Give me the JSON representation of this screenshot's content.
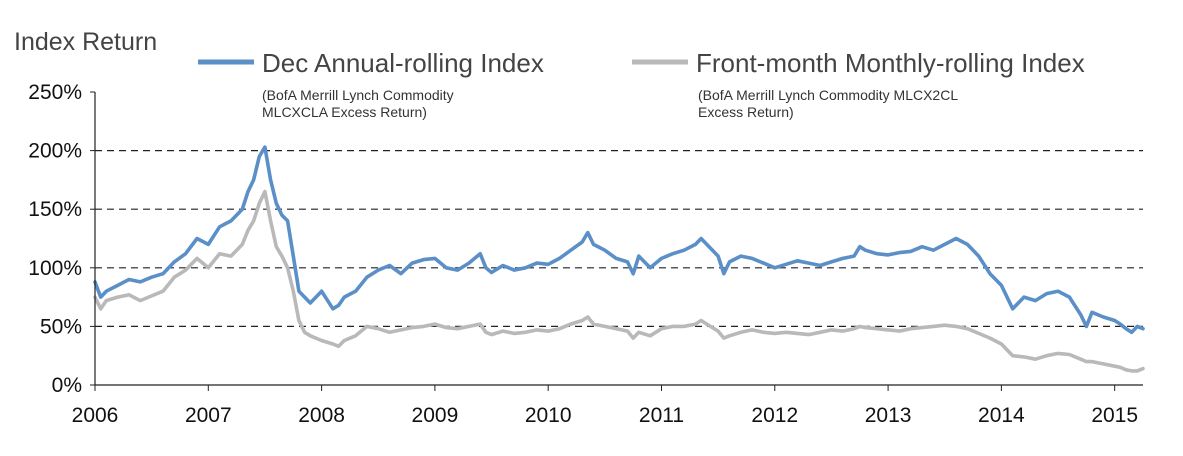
{
  "chart_data": {
    "type": "line",
    "ylabel": "Index Return",
    "ylim": [
      0,
      250
    ],
    "xlim": [
      2006,
      2015.25
    ],
    "y_ticks": [
      {
        "value": 0,
        "label": "0%"
      },
      {
        "value": 50,
        "label": "50%"
      },
      {
        "value": 100,
        "label": "100%"
      },
      {
        "value": 150,
        "label": "150%"
      },
      {
        "value": 200,
        "label": "200%"
      },
      {
        "value": 250,
        "label": "250%"
      }
    ],
    "x_ticks": [
      {
        "value": 2006,
        "label": "2006"
      },
      {
        "value": 2007,
        "label": "2007"
      },
      {
        "value": 2008,
        "label": "2008"
      },
      {
        "value": 2009,
        "label": "2009"
      },
      {
        "value": 2010,
        "label": "2010"
      },
      {
        "value": 2011,
        "label": "2011"
      },
      {
        "value": 2012,
        "label": "2012"
      },
      {
        "value": 2013,
        "label": "2013"
      },
      {
        "value": 2014,
        "label": "2014"
      },
      {
        "value": 2015,
        "label": "2015"
      }
    ],
    "grid": "horizontal-dashed",
    "legend_position": "top",
    "series": [
      {
        "name": "Dec Annual-rolling Index",
        "subtitle_line1": "(BofA Merrill Lynch Commodity",
        "subtitle_line2": "MLCXCLA Excess Return)",
        "color": "#5b8fc7",
        "x": [
          2006.0,
          2006.05,
          2006.1,
          2006.2,
          2006.3,
          2006.4,
          2006.5,
          2006.6,
          2006.7,
          2006.8,
          2006.9,
          2007.0,
          2007.1,
          2007.2,
          2007.3,
          2007.35,
          2007.4,
          2007.45,
          2007.5,
          2007.55,
          2007.6,
          2007.65,
          2007.7,
          2007.75,
          2007.8,
          2007.85,
          2007.9,
          2008.0,
          2008.1,
          2008.15,
          2008.2,
          2008.3,
          2008.4,
          2008.5,
          2008.6,
          2008.7,
          2008.8,
          2008.9,
          2009.0,
          2009.1,
          2009.2,
          2009.3,
          2009.4,
          2009.45,
          2009.5,
          2009.6,
          2009.7,
          2009.8,
          2009.9,
          2010.0,
          2010.1,
          2010.2,
          2010.3,
          2010.35,
          2010.4,
          2010.5,
          2010.6,
          2010.7,
          2010.75,
          2010.8,
          2010.9,
          2011.0,
          2011.1,
          2011.2,
          2011.3,
          2011.35,
          2011.4,
          2011.5,
          2011.55,
          2011.6,
          2011.7,
          2011.8,
          2011.9,
          2012.0,
          2012.1,
          2012.2,
          2012.3,
          2012.4,
          2012.5,
          2012.6,
          2012.7,
          2012.75,
          2012.8,
          2012.9,
          2013.0,
          2013.1,
          2013.2,
          2013.3,
          2013.4,
          2013.5,
          2013.6,
          2013.7,
          2013.8,
          2013.9,
          2014.0,
          2014.1,
          2014.2,
          2014.3,
          2014.4,
          2014.5,
          2014.6,
          2014.7,
          2014.75,
          2014.8,
          2014.9,
          2015.0,
          2015.05,
          2015.1,
          2015.15,
          2015.2,
          2015.25
        ],
        "y": [
          88,
          75,
          80,
          85,
          90,
          88,
          92,
          95,
          105,
          112,
          125,
          120,
          135,
          140,
          150,
          165,
          175,
          195,
          203,
          175,
          155,
          145,
          140,
          110,
          80,
          75,
          70,
          80,
          65,
          68,
          75,
          80,
          92,
          98,
          102,
          95,
          104,
          107,
          108,
          100,
          98,
          104,
          112,
          100,
          96,
          102,
          98,
          100,
          104,
          103,
          108,
          115,
          122,
          130,
          120,
          115,
          108,
          105,
          95,
          110,
          100,
          108,
          112,
          115,
          120,
          125,
          120,
          110,
          95,
          105,
          110,
          108,
          104,
          100,
          103,
          106,
          104,
          102,
          105,
          108,
          110,
          118,
          115,
          112,
          111,
          113,
          114,
          118,
          115,
          120,
          125,
          120,
          110,
          95,
          85,
          65,
          75,
          72,
          78,
          80,
          75,
          60,
          50,
          62,
          58,
          55,
          52,
          48,
          45,
          50,
          48
        ]
      },
      {
        "name": "Front-month Monthly-rolling Index",
        "subtitle_line1": "(BofA Merrill Lynch Commodity MLCX2CL",
        "subtitle_line2": "Excess Return)",
        "color": "#b9b9b9",
        "x": [
          2006.0,
          2006.05,
          2006.1,
          2006.2,
          2006.3,
          2006.4,
          2006.5,
          2006.6,
          2006.7,
          2006.8,
          2006.9,
          2007.0,
          2007.1,
          2007.2,
          2007.3,
          2007.35,
          2007.4,
          2007.45,
          2007.5,
          2007.55,
          2007.6,
          2007.65,
          2007.7,
          2007.75,
          2007.8,
          2007.85,
          2007.9,
          2008.0,
          2008.1,
          2008.15,
          2008.2,
          2008.3,
          2008.4,
          2008.5,
          2008.6,
          2008.7,
          2008.8,
          2008.9,
          2009.0,
          2009.1,
          2009.2,
          2009.3,
          2009.4,
          2009.45,
          2009.5,
          2009.6,
          2009.7,
          2009.8,
          2009.9,
          2010.0,
          2010.1,
          2010.2,
          2010.3,
          2010.35,
          2010.4,
          2010.5,
          2010.6,
          2010.7,
          2010.75,
          2010.8,
          2010.9,
          2011.0,
          2011.1,
          2011.2,
          2011.3,
          2011.35,
          2011.4,
          2011.5,
          2011.55,
          2011.6,
          2011.7,
          2011.8,
          2011.9,
          2012.0,
          2012.1,
          2012.2,
          2012.3,
          2012.4,
          2012.5,
          2012.6,
          2012.7,
          2012.75,
          2012.8,
          2012.9,
          2013.0,
          2013.1,
          2013.2,
          2013.3,
          2013.4,
          2013.5,
          2013.6,
          2013.7,
          2013.8,
          2013.9,
          2014.0,
          2014.1,
          2014.2,
          2014.3,
          2014.4,
          2014.5,
          2014.6,
          2014.7,
          2014.75,
          2014.8,
          2014.9,
          2015.0,
          2015.05,
          2015.1,
          2015.15,
          2015.2,
          2015.25
        ],
        "y": [
          75,
          65,
          72,
          75,
          77,
          72,
          76,
          80,
          92,
          98,
          108,
          100,
          112,
          110,
          120,
          132,
          140,
          155,
          165,
          140,
          118,
          110,
          100,
          80,
          55,
          45,
          42,
          38,
          35,
          33,
          38,
          42,
          50,
          48,
          45,
          47,
          49,
          50,
          52,
          49,
          48,
          50,
          52,
          45,
          43,
          46,
          44,
          45,
          47,
          46,
          48,
          52,
          55,
          58,
          52,
          50,
          48,
          46,
          40,
          45,
          42,
          48,
          50,
          50,
          52,
          55,
          52,
          46,
          40,
          42,
          45,
          47,
          45,
          44,
          45,
          44,
          43,
          45,
          47,
          46,
          48,
          50,
          49,
          48,
          47,
          46,
          48,
          49,
          50,
          51,
          50,
          48,
          44,
          40,
          35,
          25,
          24,
          22,
          25,
          27,
          26,
          22,
          20,
          20,
          18,
          16,
          15,
          13,
          12,
          12,
          14
        ]
      }
    ]
  }
}
